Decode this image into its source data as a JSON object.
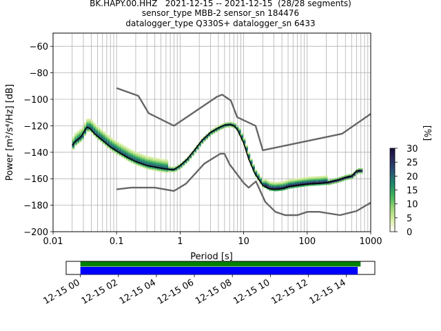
{
  "figure": {
    "title_lines": [
      "BK.HAPY.00.HHZ   2021-12-15 -- 2021-12-15  (28/28 segments)",
      "sensor_type MBB-2 sensor_sn 184476",
      "datalogger_type Q330S+ datalogger_sn 6433"
    ]
  },
  "chart_data": [
    {
      "type": "heatmap",
      "title": "BK.HAPY.00.HHZ   2021-12-15 -- 2021-12-15  (28/28 segments)",
      "xlabel": "Period [s]",
      "ylabel": "Power [m²/s⁴/Hz] [dB]",
      "xscale": "log",
      "xlim": [
        0.01,
        1000
      ],
      "ylim": [
        -200,
        -50
      ],
      "x_ticks": [
        {
          "value": 0.01,
          "label": "0.01"
        },
        {
          "value": 0.1,
          "label": "0.1"
        },
        {
          "value": 1,
          "label": "1"
        },
        {
          "value": 10,
          "label": "10"
        },
        {
          "value": 100,
          "label": "100"
        },
        {
          "value": 1000,
          "label": "1000"
        }
      ],
      "y_ticks": [
        -200,
        -180,
        -160,
        -140,
        -120,
        -100,
        -80,
        -60
      ],
      "grid": true,
      "colorbar": {
        "label": "[%]",
        "range": [
          0,
          30
        ],
        "ticks": [
          0,
          5,
          10,
          15,
          20,
          25,
          30
        ],
        "colormap": [
          "#ffffff",
          "#d9efa4",
          "#9ad675",
          "#3fb45c",
          "#1e8a6a",
          "#2a5678",
          "#2b2e63",
          "#1c0b3a"
        ]
      },
      "series": [
        {
          "name": "",
          "kind": "mean",
          "color": "#000000",
          "x": [
            0.02,
            0.022,
            0.025,
            0.028,
            0.031,
            0.034,
            0.038,
            0.045,
            0.06,
            0.08,
            0.1,
            0.15,
            0.2,
            0.3,
            0.5,
            0.7,
            0.8,
            1.0,
            1.3,
            1.7,
            2.2,
            3,
            4,
            5,
            6,
            7,
            8,
            10,
            12,
            15,
            20,
            25,
            30,
            40,
            50,
            70,
            100,
            150,
            200,
            300,
            400,
            500,
            600,
            700
          ],
          "y": [
            -135,
            -132,
            -130,
            -128,
            -124,
            -121,
            -122,
            -126,
            -131,
            -136,
            -139,
            -144,
            -147,
            -150,
            -152,
            -153,
            -153,
            -150,
            -145,
            -138,
            -131,
            -125,
            -121.5,
            -119.5,
            -119,
            -120,
            -123,
            -133,
            -145,
            -156,
            -165,
            -167.5,
            -168,
            -167.5,
            -166,
            -165,
            -164,
            -163.5,
            -163,
            -161,
            -159,
            -158,
            -154,
            -154
          ]
        },
        {
          "name": "",
          "kind": "noise-model-high",
          "color": "#666666",
          "x": [
            0.1,
            0.22,
            0.32,
            0.8,
            3.8,
            4.6,
            6.3,
            7.9,
            15.4,
            20,
            354.8,
            1000
          ],
          "y": [
            -91.5,
            -97.4,
            -110.5,
            -120,
            -98,
            -96.5,
            -101,
            -113.5,
            -120,
            -138.5,
            -126,
            -111
          ]
        },
        {
          "name": "",
          "kind": "noise-model-low",
          "color": "#666666",
          "x": [
            0.1,
            0.17,
            0.4,
            0.8,
            1.24,
            2.4,
            4.3,
            5.0,
            6.0,
            10.0,
            12.0,
            15.6,
            21.9,
            31.6,
            45,
            70,
            101,
            154,
            328,
            600,
            1000
          ],
          "y": [
            -168,
            -166.7,
            -166.7,
            -169.2,
            -163.7,
            -148.6,
            -141.1,
            -141.1,
            -149,
            -163.2,
            -166.7,
            -162,
            -177.5,
            -185,
            -187.5,
            -187.5,
            -185,
            -185,
            -187.5,
            -184.4,
            -178
          ]
        }
      ]
    },
    {
      "type": "bar",
      "xlabel": "",
      "x_tick_labels": [
        "12-15 00",
        "12-15 02",
        "12-15 04",
        "12-15 06",
        "12-15 08",
        "12-15 10",
        "12-15 12",
        "12-15 14"
      ],
      "x_tick_hours": [
        0,
        2,
        4,
        6,
        8,
        10,
        12,
        14
      ],
      "xlim_hours": [
        -0.75,
        15.5
      ],
      "series": [
        {
          "name": "",
          "kind": "data-coverage",
          "color": "#008000",
          "start_hour": 0.0,
          "end_hour": 14.75
        },
        {
          "name": "",
          "kind": "psd-coverage",
          "color": "#0000ff",
          "start_hour": 0.0,
          "end_hour": 14.6
        }
      ]
    }
  ]
}
